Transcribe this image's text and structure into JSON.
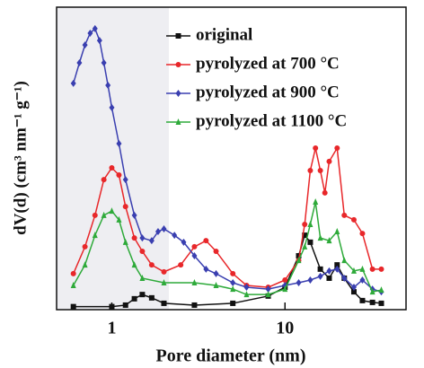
{
  "chart_data": {
    "type": "line",
    "xlabel": "Pore diameter (nm)",
    "ylabel": "dV(d) (cm³ nm⁻¹ g⁻¹)",
    "xscale": "log",
    "xlim": [
      0.48,
      50
    ],
    "ylim": [
      0,
      100
    ],
    "xticks": [
      1,
      10
    ],
    "legend": "upper right",
    "series": [
      {
        "name": "original",
        "color": "#111111",
        "marker": "square",
        "x": [
          0.6,
          1.0,
          1.2,
          1.35,
          1.5,
          1.7,
          2,
          3,
          5,
          8,
          10,
          12,
          13,
          14,
          16,
          18,
          20,
          22,
          25,
          28,
          32,
          36
        ],
        "values": [
          1,
          1,
          1.5,
          3.6,
          5,
          3.9,
          2.1,
          1.5,
          2.1,
          4.5,
          7.4,
          17.8,
          24.6,
          22.3,
          13.4,
          10.4,
          14.8,
          10.4,
          5.9,
          3,
          2.4,
          2.1
        ]
      },
      {
        "name": "pyrolyzed at 700 °C",
        "color": "#e8272a",
        "marker": "circle",
        "x": [
          0.6,
          0.7,
          0.8,
          0.9,
          1.0,
          1.1,
          1.2,
          1.35,
          1.5,
          1.7,
          2.0,
          2.5,
          3.0,
          3.5,
          4,
          5,
          6,
          8,
          10,
          12,
          13,
          14,
          15,
          16,
          17,
          18,
          20,
          22,
          25,
          28,
          32,
          36
        ],
        "values": [
          11.9,
          20.8,
          31.2,
          43,
          46.9,
          44.5,
          34.1,
          23.7,
          19.3,
          14.8,
          12.5,
          14.8,
          20.8,
          22.8,
          19.3,
          11.9,
          8,
          7.4,
          9.8,
          16.3,
          28.2,
          46,
          53.4,
          46,
          38.6,
          49,
          53.4,
          31.2,
          29.7,
          25.2,
          13.4,
          13.4
        ]
      },
      {
        "name": "pyrolyzed at 900 °C",
        "color": "#3a3fb0",
        "marker": "diamond",
        "x": [
          0.6,
          0.65,
          0.7,
          0.75,
          0.8,
          0.85,
          0.9,
          0.95,
          1.0,
          1.1,
          1.2,
          1.35,
          1.5,
          1.7,
          1.85,
          2.0,
          2.3,
          2.6,
          3.0,
          3.5,
          4,
          5,
          6,
          8,
          10,
          12,
          14,
          16,
          18,
          20,
          22,
          25,
          28,
          32,
          36
        ],
        "values": [
          74.8,
          81.6,
          87.5,
          91.4,
          92.9,
          89,
          81.6,
          74.2,
          66.8,
          54.9,
          43,
          31.2,
          23.7,
          22.8,
          25.8,
          26.7,
          24.6,
          22.3,
          17.8,
          13.4,
          11.9,
          8.9,
          7.4,
          6.8,
          8,
          8.9,
          9.8,
          11,
          12.8,
          13.4,
          10.4,
          7.4,
          9.8,
          6.8,
          5.9
        ]
      },
      {
        "name": "pyrolyzed at 1100 °C",
        "color": "#2eaa3a",
        "marker": "triangle",
        "x": [
          0.6,
          0.7,
          0.8,
          0.9,
          1.0,
          1.1,
          1.2,
          1.35,
          1.5,
          2,
          3,
          4,
          5,
          6,
          8,
          10,
          12,
          13,
          14,
          15,
          16,
          18,
          20,
          22,
          25,
          28,
          32,
          36
        ],
        "values": [
          8,
          14.8,
          24.6,
          31.2,
          32.6,
          29.7,
          22.3,
          14.8,
          10.4,
          8.9,
          8.9,
          8,
          6.8,
          5,
          5,
          6.8,
          16.3,
          20.8,
          28.2,
          35.6,
          23.7,
          22.8,
          25.8,
          16.3,
          12.8,
          13.4,
          5.9,
          6.5
        ]
      }
    ]
  }
}
